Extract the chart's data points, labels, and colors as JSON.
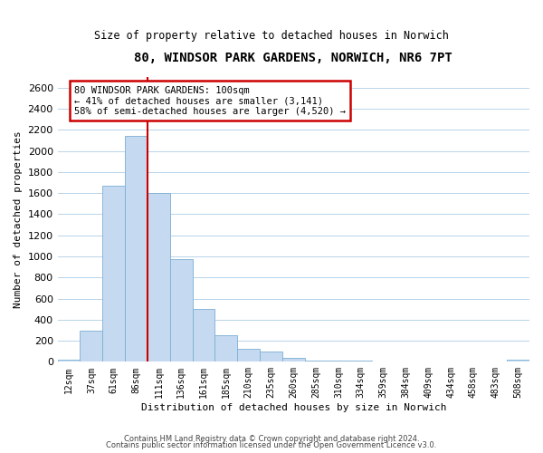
{
  "title": "80, WINDSOR PARK GARDENS, NORWICH, NR6 7PT",
  "subtitle": "Size of property relative to detached houses in Norwich",
  "xlabel": "Distribution of detached houses by size in Norwich",
  "ylabel": "Number of detached properties",
  "bar_color": "#c5d9f0",
  "bar_edge_color": "#7bafd4",
  "bin_labels": [
    "12sqm",
    "37sqm",
    "61sqm",
    "86sqm",
    "111sqm",
    "136sqm",
    "161sqm",
    "185sqm",
    "210sqm",
    "235sqm",
    "260sqm",
    "285sqm",
    "310sqm",
    "334sqm",
    "359sqm",
    "384sqm",
    "409sqm",
    "434sqm",
    "458sqm",
    "483sqm",
    "508sqm"
  ],
  "bar_values": [
    20,
    295,
    1670,
    2140,
    1600,
    970,
    500,
    255,
    120,
    95,
    35,
    10,
    10,
    10,
    5,
    5,
    5,
    0,
    5,
    0,
    20
  ],
  "annotation_text": "80 WINDSOR PARK GARDENS: 100sqm\n← 41% of detached houses are smaller (3,141)\n58% of semi-detached houses are larger (4,520) →",
  "ylim": [
    0,
    2700
  ],
  "yticks": [
    0,
    200,
    400,
    600,
    800,
    1000,
    1200,
    1400,
    1600,
    1800,
    2000,
    2200,
    2400,
    2600
  ],
  "vline_color": "#cc0000",
  "annotation_box_edge": "#cc0000",
  "vline_x": 3.5,
  "footer_line1": "Contains HM Land Registry data © Crown copyright and database right 2024.",
  "footer_line2": "Contains public sector information licensed under the Open Government Licence v3.0."
}
